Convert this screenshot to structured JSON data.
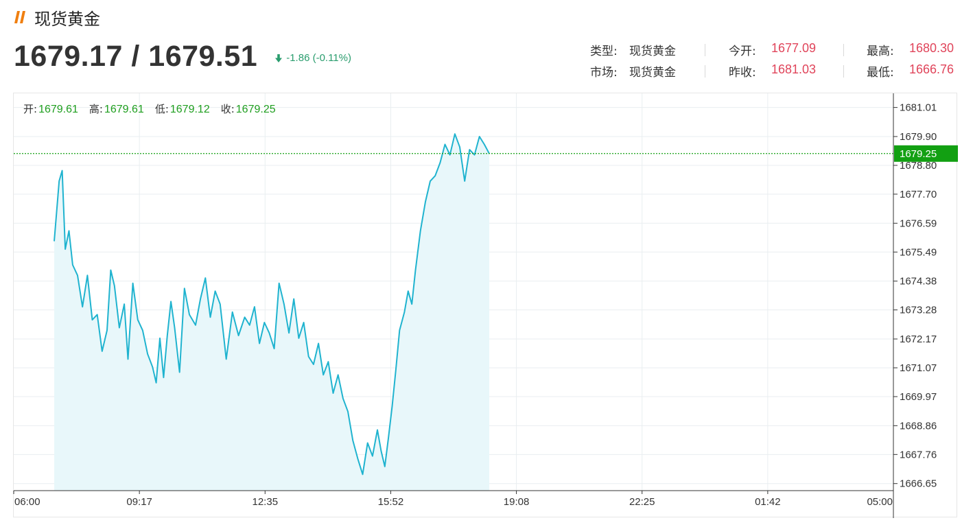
{
  "header": {
    "title": "现货黄金",
    "price": "1679.17 / 1679.51",
    "change": "-1.86 (-0.11%)",
    "accent_color": "#f07f10"
  },
  "info": {
    "type_label": "类型:",
    "type_value": "现货黄金",
    "market_label": "市场:",
    "market_value": "现货黄金",
    "open_label": "今开:",
    "open_value": "1677.09",
    "prev_close_label": "昨收:",
    "prev_close_value": "1681.03",
    "high_label": "最高:",
    "high_value": "1680.30",
    "low_label": "最低:",
    "low_value": "1666.76"
  },
  "ohlc": {
    "open_label": "开:",
    "open_value": "1679.61",
    "high_label": "高:",
    "high_value": "1679.61",
    "low_label": "低:",
    "low_value": "1679.12",
    "close_label": "收:",
    "close_value": "1679.25"
  },
  "chart_data": {
    "type": "area",
    "title": "",
    "xlabel": "",
    "ylabel": "",
    "x_ticks": [
      "06:00",
      "09:17",
      "12:35",
      "15:52",
      "19:08",
      "22:25",
      "01:42",
      "05:00"
    ],
    "y_ticks": [
      "1681.01",
      "1679.90",
      "1678.80",
      "1677.70",
      "1676.59",
      "1675.49",
      "1674.38",
      "1673.28",
      "1672.17",
      "1671.07",
      "1669.97",
      "1668.86",
      "1667.76",
      "1666.65"
    ],
    "ylim": [
      1666.38,
      1681.55
    ],
    "x_unit": "minutes since 06:00",
    "xlim": [
      0,
      1380
    ],
    "grid": true,
    "line_color": "#1fb3cf",
    "fill_color": "#e8f7fa",
    "current_price": "1679.25",
    "current_price_value": 1679.25,
    "current_price_color": "#12a012",
    "series": [
      {
        "x": [
          0,
          8,
          13,
          18,
          24,
          30,
          38,
          46,
          54,
          62,
          70,
          78,
          86,
          92,
          98,
          106,
          114,
          120,
          128,
          136,
          144,
          152,
          160,
          166,
          172,
          178,
          184,
          190,
          196,
          204,
          212,
          220,
          230,
          238,
          246,
          254,
          262,
          270,
          280,
          290,
          300,
          310,
          318,
          326,
          334,
          342,
          350,
          358,
          366,
          374,
          382,
          390,
          398,
          406,
          414,
          422,
          430,
          438,
          446,
          454,
          462,
          470,
          478,
          486,
          494,
          502,
          510,
          518,
          526,
          532,
          538,
          544,
          550,
          556,
          562,
          570,
          576,
          582,
          588,
          596,
          604,
          612,
          620,
          628,
          636,
          644,
          652,
          660,
          668,
          676,
          684,
          692,
          700,
          708
        ],
        "y": [
          1675.9,
          1678.2,
          1678.6,
          1675.6,
          1676.3,
          1675.0,
          1674.6,
          1673.4,
          1674.6,
          1672.9,
          1673.1,
          1671.7,
          1672.5,
          1674.8,
          1674.2,
          1672.6,
          1673.5,
          1671.4,
          1674.3,
          1672.9,
          1672.5,
          1671.6,
          1671.1,
          1670.5,
          1672.2,
          1670.7,
          1672.3,
          1673.6,
          1672.6,
          1670.9,
          1674.1,
          1673.1,
          1672.7,
          1673.7,
          1674.5,
          1673.0,
          1674.0,
          1673.5,
          1671.4,
          1673.2,
          1672.3,
          1673.0,
          1672.7,
          1673.4,
          1672.0,
          1672.8,
          1672.4,
          1671.8,
          1674.3,
          1673.5,
          1672.4,
          1673.7,
          1672.2,
          1672.8,
          1671.5,
          1671.2,
          1672.0,
          1670.8,
          1671.3,
          1670.1,
          1670.8,
          1669.9,
          1669.4,
          1668.3,
          1667.6,
          1667.0,
          1668.2,
          1667.7,
          1668.7,
          1667.9,
          1667.3,
          1668.4,
          1669.6,
          1671.0,
          1672.5,
          1673.2,
          1674.0,
          1673.5,
          1674.8,
          1676.3,
          1677.4,
          1678.2,
          1678.4,
          1678.9,
          1679.6,
          1679.2,
          1680.0,
          1679.5,
          1678.2,
          1679.4,
          1679.2,
          1679.9,
          1679.6,
          1679.25
        ]
      }
    ]
  }
}
